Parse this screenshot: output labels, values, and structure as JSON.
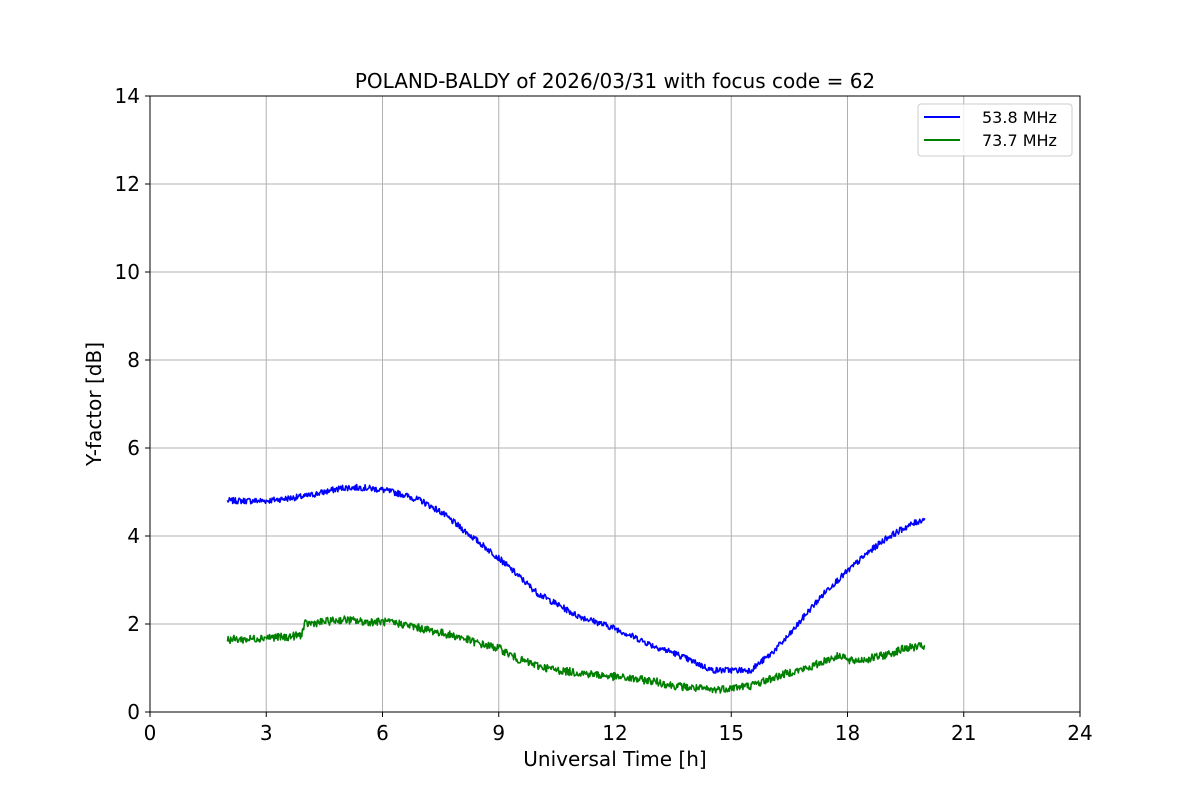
{
  "chart_data": {
    "type": "line",
    "title": "POLAND-BALDY of 2026/03/31 with focus code = 62",
    "xlabel": "Universal Time [h]",
    "ylabel": "Y-factor [dB]",
    "xlim": [
      0,
      24
    ],
    "ylim": [
      0,
      14
    ],
    "xticks": [
      0,
      3,
      6,
      9,
      12,
      15,
      18,
      21,
      24
    ],
    "yticks": [
      0,
      2,
      4,
      6,
      8,
      10,
      12,
      14
    ],
    "grid": true,
    "legend_position": "top-right",
    "series": [
      {
        "name": "53.8 MHz",
        "color": "#0000ff",
        "x": [
          2.0,
          2.5,
          3.0,
          3.5,
          4.0,
          4.5,
          5.0,
          5.5,
          6.0,
          6.5,
          7.0,
          7.5,
          8.0,
          8.5,
          9.0,
          9.5,
          10.0,
          10.5,
          11.0,
          11.5,
          12.0,
          12.5,
          13.0,
          13.5,
          14.0,
          14.5,
          15.0,
          15.5,
          16.0,
          16.5,
          17.0,
          17.5,
          18.0,
          18.5,
          19.0,
          19.5,
          20.0
        ],
        "y": [
          4.8,
          4.8,
          4.8,
          4.85,
          4.9,
          5.0,
          5.1,
          5.1,
          5.05,
          4.95,
          4.8,
          4.55,
          4.2,
          3.85,
          3.5,
          3.1,
          2.7,
          2.45,
          2.2,
          2.05,
          1.9,
          1.7,
          1.5,
          1.35,
          1.15,
          0.95,
          0.95,
          0.95,
          1.3,
          1.75,
          2.3,
          2.8,
          3.2,
          3.6,
          3.95,
          4.2,
          4.4
        ]
      },
      {
        "name": "73.7 MHz",
        "color": "#008000",
        "x": [
          2.0,
          2.5,
          3.0,
          3.5,
          3.9,
          4.0,
          4.5,
          5.0,
          5.5,
          6.0,
          6.5,
          7.0,
          7.5,
          8.0,
          8.5,
          9.0,
          9.5,
          10.0,
          10.5,
          11.0,
          11.5,
          12.0,
          12.5,
          13.0,
          13.5,
          14.0,
          14.5,
          15.0,
          15.5,
          16.0,
          16.5,
          17.0,
          17.5,
          17.9,
          18.0,
          18.5,
          19.0,
          19.5,
          20.0
        ],
        "y": [
          1.65,
          1.65,
          1.7,
          1.7,
          1.75,
          2.0,
          2.05,
          2.1,
          2.05,
          2.05,
          2.0,
          1.9,
          1.8,
          1.7,
          1.55,
          1.45,
          1.2,
          1.05,
          0.95,
          0.9,
          0.85,
          0.8,
          0.75,
          0.7,
          0.6,
          0.55,
          0.5,
          0.55,
          0.6,
          0.75,
          0.9,
          1.0,
          1.2,
          1.3,
          1.15,
          1.2,
          1.3,
          1.45,
          1.5
        ]
      }
    ]
  }
}
